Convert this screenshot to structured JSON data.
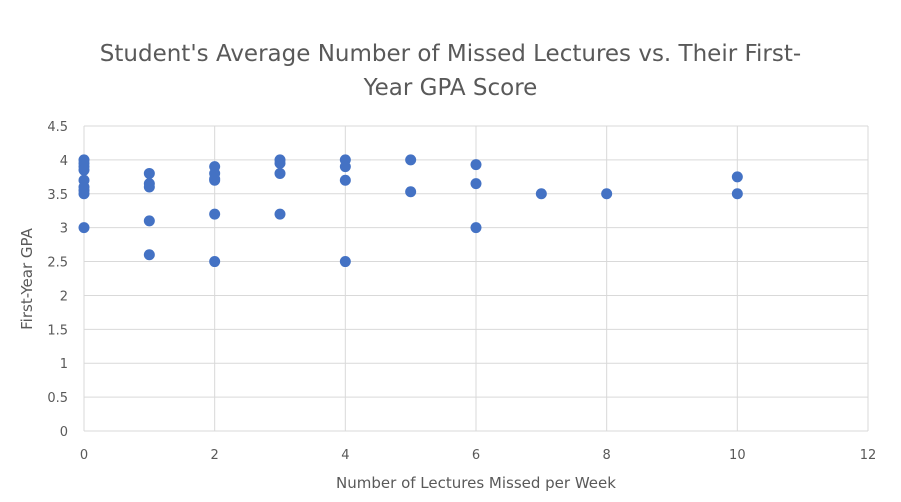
{
  "chart_data": {
    "type": "scatter",
    "title_lines": [
      "Student's Average Number of Missed Lectures vs. Their First-",
      "Year GPA Score"
    ],
    "xlabel": "Number of Lectures Missed per Week",
    "ylabel": "First-Year GPA",
    "xlim": [
      0,
      12
    ],
    "ylim": [
      0,
      4.5
    ],
    "xticks": [
      "0",
      "2",
      "4",
      "6",
      "8",
      "10",
      "12"
    ],
    "yticks": [
      "0",
      "0.5",
      "1",
      "1.5",
      "2",
      "2.5",
      "3",
      "3.5",
      "4",
      "4.5"
    ],
    "grid": true,
    "marker_color": "#4472C4",
    "points": [
      {
        "x": 0,
        "y": 4.0
      },
      {
        "x": 0,
        "y": 3.95
      },
      {
        "x": 0,
        "y": 3.9
      },
      {
        "x": 0,
        "y": 3.85
      },
      {
        "x": 0,
        "y": 3.7
      },
      {
        "x": 0,
        "y": 3.6
      },
      {
        "x": 0,
        "y": 3.55
      },
      {
        "x": 0,
        "y": 3.5
      },
      {
        "x": 0,
        "y": 3.0
      },
      {
        "x": 1,
        "y": 3.8
      },
      {
        "x": 1,
        "y": 3.65
      },
      {
        "x": 1,
        "y": 3.6
      },
      {
        "x": 1,
        "y": 3.1
      },
      {
        "x": 1,
        "y": 2.6
      },
      {
        "x": 2,
        "y": 3.9
      },
      {
        "x": 2,
        "y": 3.8
      },
      {
        "x": 2,
        "y": 3.72
      },
      {
        "x": 2,
        "y": 3.7
      },
      {
        "x": 2,
        "y": 3.2
      },
      {
        "x": 2,
        "y": 2.5
      },
      {
        "x": 3,
        "y": 4.0
      },
      {
        "x": 3,
        "y": 3.95
      },
      {
        "x": 3,
        "y": 3.8
      },
      {
        "x": 3,
        "y": 3.2
      },
      {
        "x": 4,
        "y": 4.0
      },
      {
        "x": 4,
        "y": 3.9
      },
      {
        "x": 4,
        "y": 3.7
      },
      {
        "x": 4,
        "y": 2.5
      },
      {
        "x": 5,
        "y": 4.0
      },
      {
        "x": 5,
        "y": 3.53
      },
      {
        "x": 6,
        "y": 3.93
      },
      {
        "x": 6,
        "y": 3.65
      },
      {
        "x": 6,
        "y": 3.0
      },
      {
        "x": 7,
        "y": 3.5
      },
      {
        "x": 8,
        "y": 3.5
      },
      {
        "x": 10,
        "y": 3.75
      },
      {
        "x": 10,
        "y": 3.5
      }
    ]
  }
}
